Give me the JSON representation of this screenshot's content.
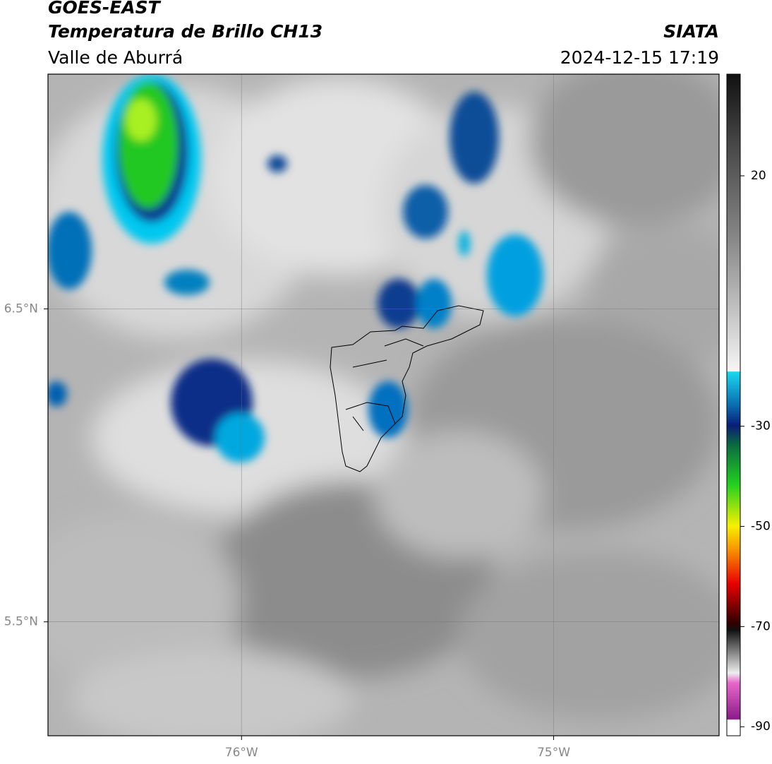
{
  "header": {
    "title": "GOES-EAST",
    "subtitle": "Temperatura de Brillo CH13",
    "region": "Valle de Aburrá",
    "source": "SIATA",
    "datetime": "2024-12-15 17:19"
  },
  "map": {
    "xlim": [
      -76.62,
      -74.47
    ],
    "ylim": [
      5.136,
      7.25
    ],
    "xticks": [
      {
        "value": -76,
        "label": "76°W"
      },
      {
        "value": -75,
        "label": "75°W"
      }
    ],
    "yticks": [
      {
        "value": 6.5,
        "label": "6.5°N"
      },
      {
        "value": 5.5,
        "label": "5.5°N"
      }
    ],
    "grid": true
  },
  "colorbar": {
    "lim": [
      -91.8,
      40.3
    ],
    "ticks": [
      20,
      -30,
      -50,
      -70,
      -90
    ]
  }
}
